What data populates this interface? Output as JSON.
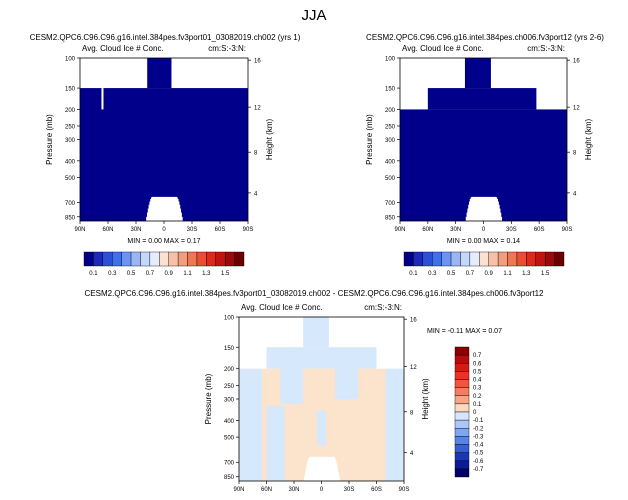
{
  "figure": {
    "season": "JJA"
  },
  "chart_data": [
    {
      "type": "heatmap",
      "title": "CESM2.QPC6.C96.C96.g16.intel.384pes.fv3port01_03082019.ch002 (yrs 1)",
      "left_label": "Avg. Cloud Ice # Conc.",
      "right_label": "cm:S:-3:N:",
      "ylabel": "Pressure (mb)",
      "ylabel_right": "Height (km)",
      "x_ticks": [
        "90N",
        "60N",
        "30N",
        "0",
        "30S",
        "60S",
        "90S"
      ],
      "y_ticks": [
        "100",
        "150",
        "200",
        "250",
        "300",
        "400",
        "500",
        "700",
        "850"
      ],
      "y_ticks_right": [
        "16",
        "12",
        "8",
        "4"
      ],
      "min_text": "MIN =   0.00   MAX =   0.17",
      "min": 0.0,
      "max": 0.17,
      "fill_color": "#00008b",
      "shape": {
        "top_band_lat": [
          18,
          -8
        ],
        "upper_fill_from_pressure": 150,
        "notch_lat": 67,
        "surface_mound_lat": [
          -20,
          20
        ],
        "surface_mound_top_pressure": 650
      }
    },
    {
      "type": "heatmap",
      "title": "CESM2.QPC6.C96.C96.g16.intel.384pes.ch006.fv3port12 (yrs 2-6)",
      "left_label": "Avg. Cloud Ice # Conc.",
      "right_label": "cm:S:-3:N:",
      "ylabel": "Pressure (mb)",
      "ylabel_right": "Height (km)",
      "x_ticks": [
        "90N",
        "60N",
        "30N",
        "0",
        "30S",
        "60S",
        "90S"
      ],
      "y_ticks": [
        "100",
        "150",
        "200",
        "250",
        "300",
        "400",
        "500",
        "700",
        "850"
      ],
      "y_ticks_right": [
        "16",
        "12",
        "8",
        "4"
      ],
      "min_text": "MIN =   0.00   MAX =   0.14",
      "min": 0.0,
      "max": 0.14,
      "fill_color": "#00008b",
      "shape": {
        "top_band_lat": [
          20,
          -8
        ],
        "upper_fill_from_pressure": 150,
        "edge_fill_from_pressure": 200,
        "surface_mound_lat": [
          -20,
          20
        ],
        "surface_mound_top_pressure": 650
      }
    },
    {
      "type": "heatmap",
      "title": "CESM2.QPC6.C96.C96.g16.intel.384pes.fv3port01_03082019.ch002 - CESM2.QPC6.C96.C96.g16.intel.384pes.ch006.fv3port12",
      "left_label": "Avg. Cloud Ice # Conc.",
      "right_label": "cm:S:-3:N:",
      "ylabel": "Pressure (mb)",
      "ylabel_right": "Height (km)",
      "x_ticks": [
        "90N",
        "60N",
        "30N",
        "0",
        "30S",
        "60S",
        "90S"
      ],
      "y_ticks": [
        "100",
        "150",
        "200",
        "250",
        "300",
        "400",
        "500",
        "700",
        "850"
      ],
      "y_ticks_right": [
        "16",
        "12",
        "8",
        "4"
      ],
      "min_text": "MIN =  -0.11   MAX =   0.07",
      "min": -0.11,
      "max": 0.07
    }
  ],
  "colorbar_top": {
    "labels": [
      "0.1",
      "0.3",
      "0.5",
      "0.7",
      "0.9",
      "1.1",
      "1.3",
      "1.5"
    ],
    "colors": [
      "#00008b",
      "#1b2ab8",
      "#2b4fd8",
      "#3f6fef",
      "#6c94f5",
      "#9bb6f7",
      "#c4d6fa",
      "#e3edfc",
      "#fbe1d2",
      "#f8c0a6",
      "#f59c7b",
      "#f07755",
      "#eb4f33",
      "#df2a1a",
      "#c2140e",
      "#9a0a07",
      "#6b0000"
    ]
  },
  "colorbar_diff": {
    "labels": [
      "0.7",
      "0.6",
      "0.5",
      "0.4",
      "0.3",
      "0.2",
      "0.1",
      "0",
      "-0.1",
      "-0.2",
      "-0.3",
      "-0.4",
      "-0.5",
      "-0.6",
      "-0.7"
    ],
    "colors": [
      "#8b0000",
      "#b40d0a",
      "#d21d12",
      "#ea3320",
      "#f2563a",
      "#f57c5e",
      "#f8a586",
      "#fbd8c0",
      "#d6e6fb",
      "#aac8f7",
      "#7ea6f2",
      "#5784ea",
      "#355ed8",
      "#1c36b8",
      "#0d1a95",
      "#00006b"
    ],
    "diff_pos_color": "#fbe3cc",
    "diff_neg_color": "#d6e8fb"
  }
}
